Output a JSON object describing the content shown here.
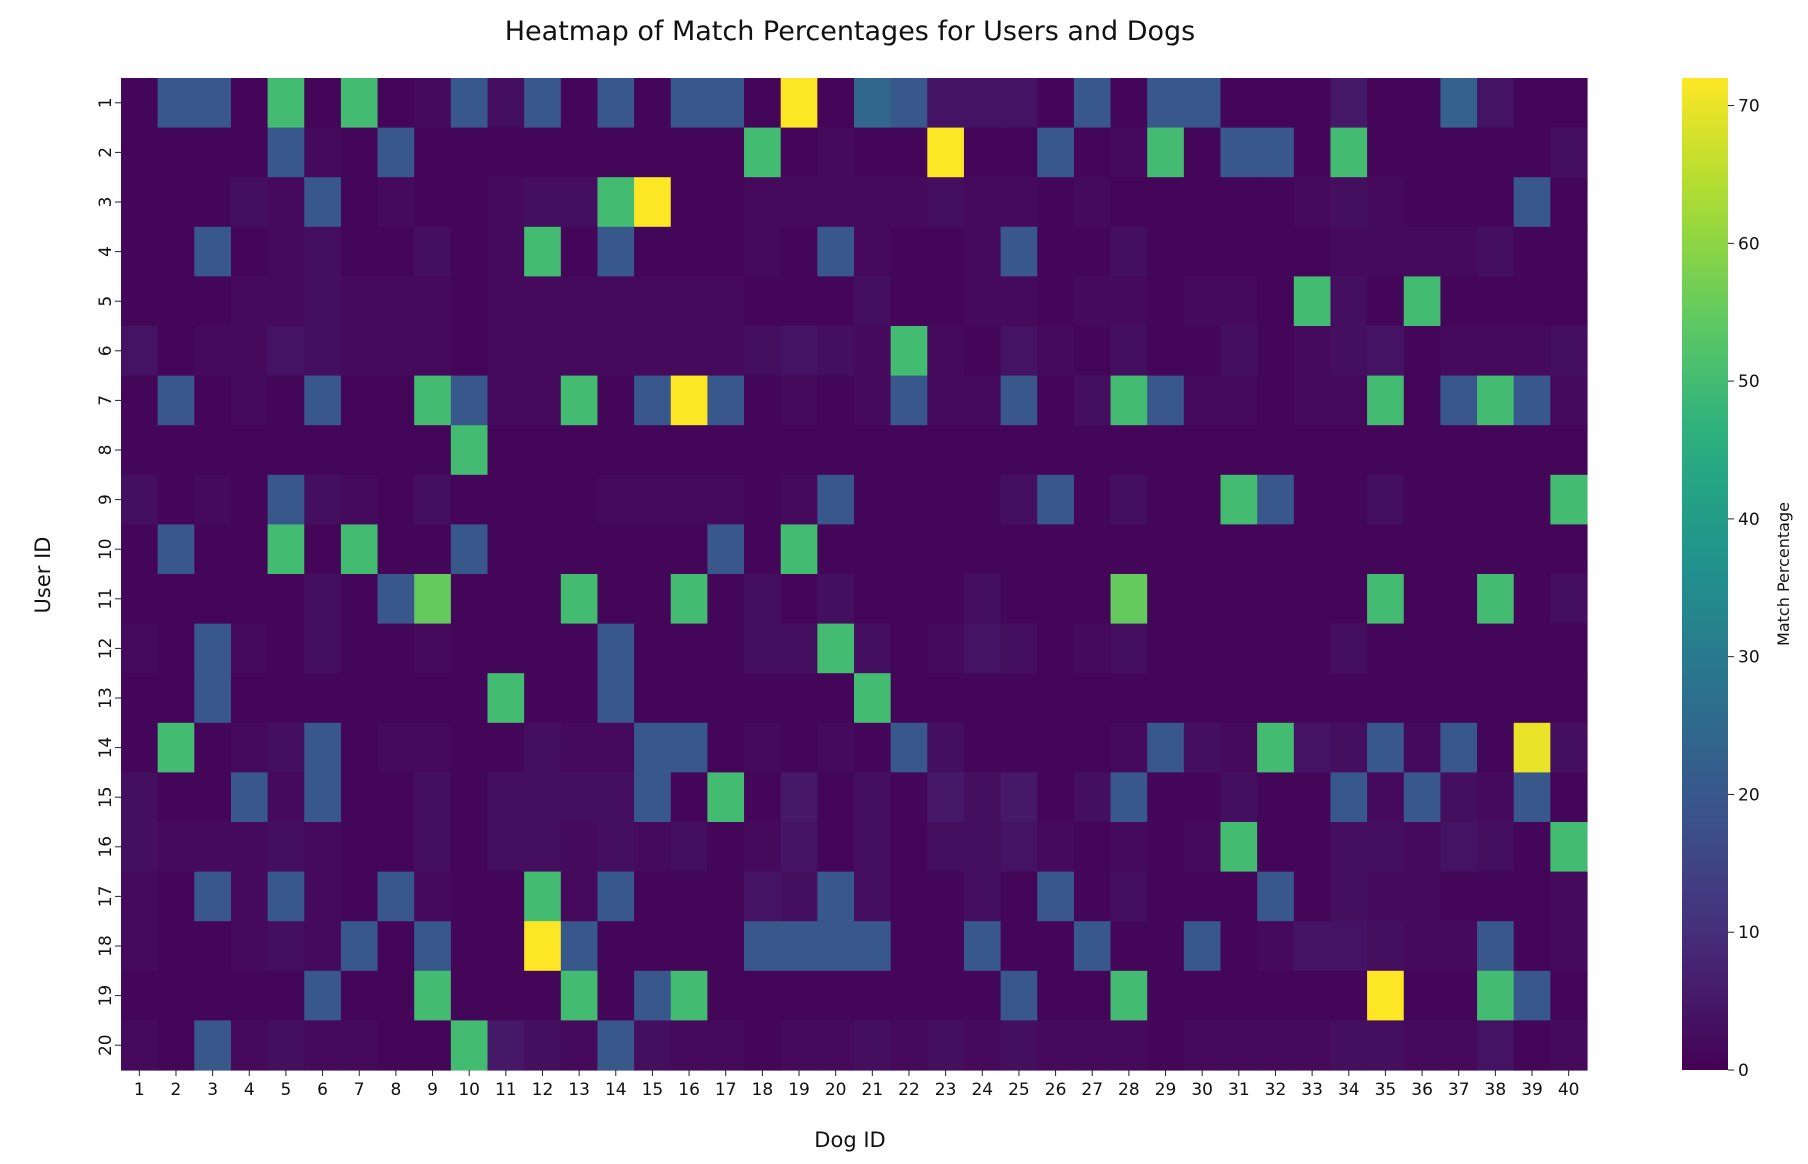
{
  "chart_data": {
    "type": "heatmap",
    "title": "Heatmap of Match Percentages for Users and Dogs",
    "xlabel": "Dog ID",
    "ylabel": "User ID",
    "x_categories": [
      "1",
      "2",
      "3",
      "4",
      "5",
      "6",
      "7",
      "8",
      "9",
      "10",
      "11",
      "12",
      "13",
      "14",
      "15",
      "16",
      "17",
      "18",
      "19",
      "20",
      "21",
      "22",
      "23",
      "24",
      "25",
      "26",
      "27",
      "28",
      "29",
      "30",
      "31",
      "32",
      "33",
      "34",
      "35",
      "36",
      "37",
      "38",
      "39",
      "40"
    ],
    "y_categories": [
      "1",
      "2",
      "3",
      "4",
      "5",
      "6",
      "7",
      "8",
      "9",
      "10",
      "11",
      "12",
      "13",
      "14",
      "15",
      "16",
      "17",
      "18",
      "19",
      "20"
    ],
    "colormap": "viridis",
    "vmin": 0,
    "vmax": 72,
    "colorbar": {
      "label": "Match Percentage",
      "ticks": [
        "0",
        "10",
        "20",
        "30",
        "40",
        "50",
        "60",
        "70"
      ]
    },
    "values": [
      [
        1,
        20,
        20,
        1,
        50,
        1,
        50,
        1,
        2,
        20,
        3,
        20,
        1,
        20,
        1,
        20,
        20,
        1,
        72,
        1,
        24,
        20,
        4,
        4,
        4,
        1,
        20,
        1,
        20,
        20,
        1,
        1,
        1,
        5,
        1,
        1,
        23,
        4,
        1,
        1
      ],
      [
        1,
        1,
        1,
        1,
        20,
        2,
        1,
        20,
        1,
        1,
        1,
        1,
        1,
        1,
        1,
        1,
        1,
        50,
        1,
        2,
        1,
        1,
        72,
        1,
        1,
        20,
        1,
        2,
        50,
        1,
        20,
        20,
        1,
        50,
        1,
        1,
        1,
        1,
        1,
        3
      ],
      [
        1,
        1,
        1,
        3,
        2,
        20,
        1,
        2,
        1,
        1,
        2,
        3,
        3,
        50,
        72,
        1,
        1,
        2,
        2,
        2,
        2,
        2,
        3,
        2,
        2,
        1,
        2,
        1,
        1,
        1,
        1,
        1,
        2,
        3,
        2,
        1,
        1,
        1,
        20,
        1
      ],
      [
        1,
        1,
        20,
        1,
        2,
        3,
        1,
        1,
        3,
        1,
        2,
        50,
        1,
        20,
        1,
        1,
        1,
        2,
        1,
        20,
        2,
        1,
        1,
        2,
        20,
        1,
        1,
        3,
        1,
        1,
        1,
        1,
        1,
        2,
        2,
        2,
        2,
        3,
        1,
        1
      ],
      [
        1,
        1,
        1,
        2,
        2,
        3,
        2,
        2,
        2,
        1,
        2,
        2,
        2,
        2,
        2,
        2,
        2,
        1,
        1,
        1,
        3,
        1,
        1,
        2,
        2,
        1,
        2,
        2,
        1,
        2,
        2,
        1,
        50,
        3,
        1,
        50,
        1,
        1,
        1,
        1
      ],
      [
        4,
        1,
        2,
        2,
        4,
        3,
        2,
        2,
        2,
        1,
        2,
        2,
        2,
        2,
        2,
        2,
        2,
        3,
        4,
        3,
        2,
        50,
        2,
        1,
        4,
        2,
        1,
        3,
        1,
        1,
        3,
        1,
        2,
        3,
        4,
        1,
        2,
        2,
        2,
        3
      ],
      [
        1,
        20,
        1,
        2,
        1,
        20,
        1,
        1,
        50,
        20,
        2,
        2,
        50,
        1,
        20,
        72,
        20,
        1,
        2,
        1,
        2,
        20,
        2,
        2,
        20,
        1,
        3,
        50,
        20,
        2,
        2,
        1,
        2,
        2,
        50,
        1,
        20,
        50,
        20,
        2
      ],
      [
        1,
        1,
        1,
        1,
        1,
        1,
        1,
        1,
        1,
        50,
        1,
        1,
        1,
        1,
        1,
        1,
        1,
        1,
        1,
        1,
        1,
        1,
        1,
        1,
        1,
        1,
        1,
        1,
        1,
        1,
        1,
        1,
        1,
        1,
        1,
        1,
        1,
        1,
        1,
        1
      ],
      [
        3,
        1,
        2,
        1,
        20,
        3,
        2,
        1,
        3,
        1,
        1,
        1,
        1,
        2,
        2,
        2,
        2,
        1,
        2,
        20,
        1,
        1,
        1,
        1,
        3,
        20,
        1,
        3,
        1,
        1,
        50,
        20,
        1,
        1,
        3,
        1,
        1,
        1,
        1,
        50
      ],
      [
        1,
        20,
        1,
        1,
        50,
        1,
        50,
        1,
        1,
        20,
        1,
        1,
        1,
        1,
        1,
        1,
        20,
        1,
        50,
        1,
        1,
        1,
        1,
        1,
        1,
        1,
        1,
        1,
        1,
        1,
        1,
        1,
        1,
        1,
        1,
        1,
        1,
        1,
        1,
        1
      ],
      [
        1,
        1,
        1,
        1,
        1,
        3,
        1,
        20,
        55,
        1,
        1,
        1,
        50,
        1,
        1,
        50,
        1,
        3,
        1,
        3,
        1,
        1,
        1,
        3,
        1,
        1,
        1,
        55,
        1,
        1,
        1,
        1,
        1,
        1,
        50,
        1,
        1,
        50,
        1,
        3
      ],
      [
        2,
        1,
        20,
        2,
        1,
        3,
        1,
        1,
        2,
        1,
        1,
        1,
        1,
        20,
        1,
        1,
        1,
        3,
        3,
        50,
        3,
        1,
        2,
        4,
        3,
        1,
        2,
        3,
        1,
        1,
        1,
        1,
        1,
        3,
        1,
        1,
        1,
        1,
        1,
        1
      ],
      [
        1,
        1,
        20,
        1,
        1,
        1,
        1,
        1,
        1,
        1,
        50,
        1,
        1,
        20,
        1,
        1,
        1,
        1,
        1,
        1,
        50,
        1,
        1,
        1,
        1,
        1,
        1,
        1,
        1,
        1,
        1,
        1,
        1,
        1,
        1,
        1,
        1,
        1,
        1,
        1
      ],
      [
        1,
        50,
        1,
        2,
        3,
        20,
        1,
        2,
        2,
        1,
        1,
        3,
        2,
        2,
        20,
        20,
        1,
        2,
        1,
        2,
        1,
        20,
        3,
        1,
        1,
        1,
        1,
        2,
        20,
        3,
        2,
        50,
        4,
        3,
        20,
        2,
        20,
        1,
        70,
        3
      ],
      [
        3,
        1,
        1,
        20,
        2,
        20,
        1,
        1,
        3,
        1,
        3,
        3,
        3,
        3,
        20,
        1,
        50,
        1,
        5,
        1,
        3,
        1,
        5,
        3,
        5,
        1,
        3,
        20,
        1,
        1,
        3,
        1,
        1,
        20,
        2,
        20,
        3,
        2,
        20,
        1
      ],
      [
        3,
        2,
        2,
        2,
        3,
        2,
        1,
        1,
        3,
        1,
        3,
        3,
        2,
        3,
        2,
        3,
        1,
        2,
        4,
        1,
        3,
        1,
        3,
        3,
        4,
        2,
        1,
        2,
        1,
        2,
        50,
        1,
        1,
        3,
        3,
        2,
        4,
        3,
        1,
        50
      ],
      [
        2,
        1,
        20,
        2,
        20,
        2,
        1,
        20,
        2,
        1,
        1,
        50,
        2,
        20,
        1,
        1,
        1,
        4,
        3,
        20,
        3,
        1,
        1,
        3,
        1,
        20,
        1,
        3,
        1,
        1,
        1,
        20,
        1,
        3,
        2,
        2,
        1,
        1,
        1,
        2
      ],
      [
        2,
        1,
        1,
        2,
        3,
        2,
        20,
        1,
        20,
        1,
        1,
        72,
        20,
        1,
        1,
        1,
        1,
        20,
        20,
        20,
        20,
        1,
        1,
        20,
        1,
        1,
        20,
        1,
        1,
        20,
        1,
        2,
        4,
        4,
        3,
        2,
        2,
        20,
        1,
        2
      ],
      [
        1,
        1,
        1,
        1,
        1,
        20,
        1,
        1,
        50,
        1,
        1,
        1,
        50,
        1,
        20,
        50,
        1,
        1,
        1,
        1,
        1,
        1,
        1,
        1,
        20,
        1,
        1,
        50,
        1,
        1,
        1,
        1,
        1,
        1,
        72,
        1,
        1,
        50,
        20,
        1
      ],
      [
        2,
        1,
        20,
        2,
        3,
        2,
        2,
        1,
        1,
        50,
        5,
        3,
        2,
        20,
        3,
        2,
        2,
        1,
        2,
        2,
        3,
        2,
        3,
        2,
        3,
        2,
        2,
        2,
        1,
        2,
        2,
        2,
        2,
        3,
        3,
        2,
        2,
        4,
        1,
        2
      ]
    ]
  }
}
